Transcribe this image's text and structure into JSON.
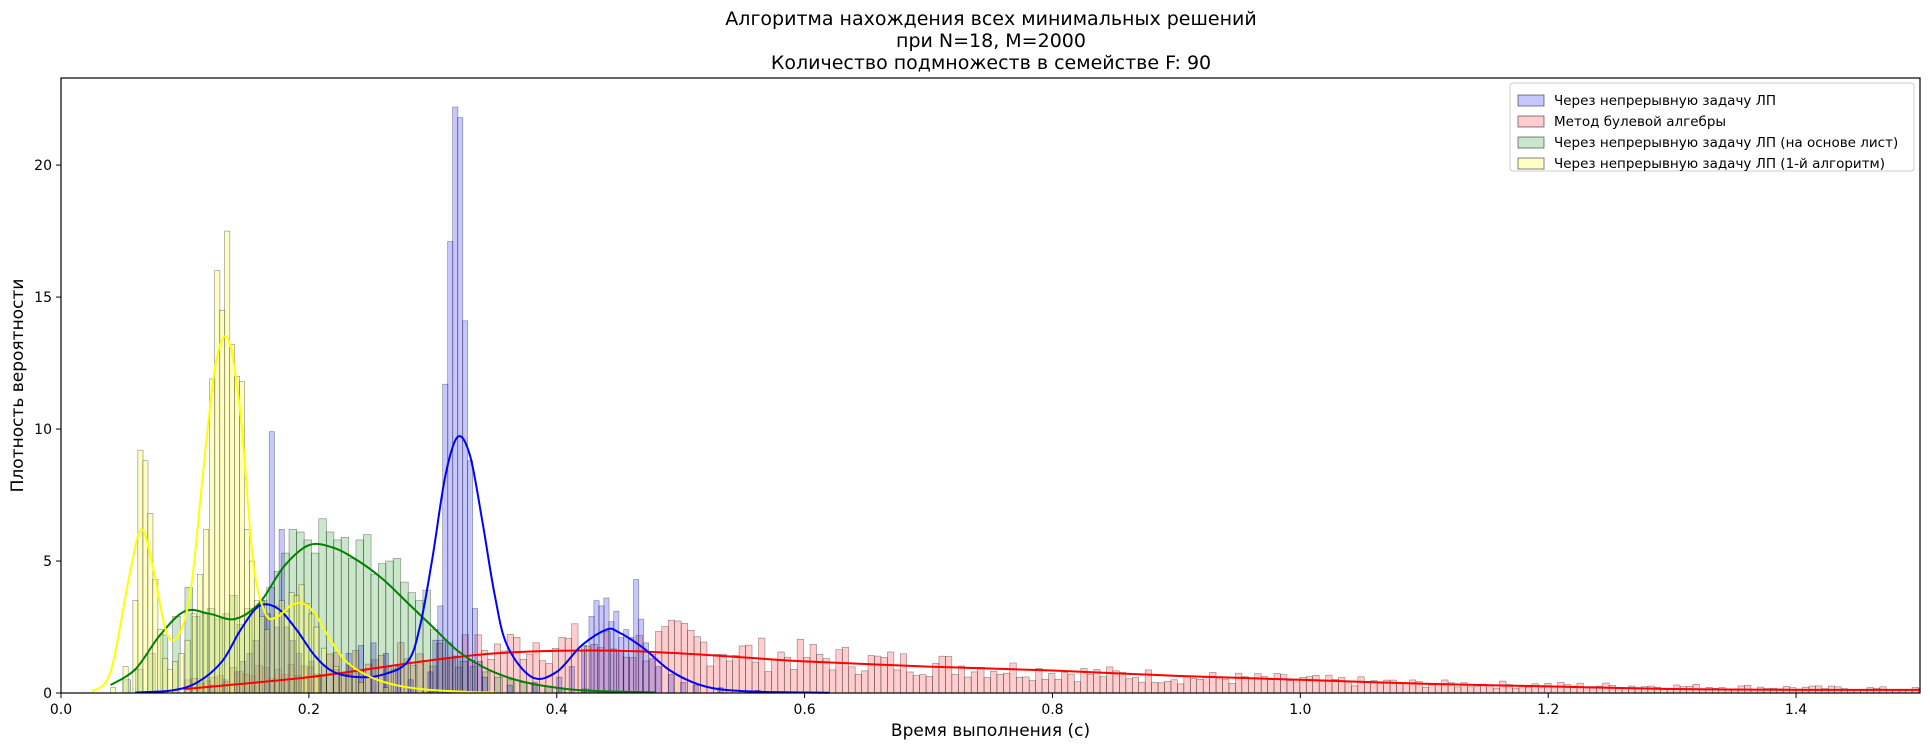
{
  "chart_data": {
    "type": "histogram",
    "title_lines": [
      "Алгоритма нахождения всех минимальных решений",
      "при N=18, M=2000",
      "Количество подмножеств в семействе F: 90"
    ],
    "xlabel": "Время выполнения (с)",
    "ylabel": "Плотность вероятности",
    "xlim": [
      0,
      1.5
    ],
    "ylim": [
      0,
      23.3
    ],
    "xticks": [
      0.0,
      0.2,
      0.4,
      0.6,
      0.8,
      1.0,
      1.2,
      1.4
    ],
    "xtick_labels": [
      "0.0",
      "0.2",
      "0.4",
      "0.6",
      "0.8",
      "1.0",
      "1.2",
      "1.4"
    ],
    "yticks": [
      0,
      5,
      10,
      15,
      20
    ],
    "ytick_labels": [
      "0",
      "5",
      "10",
      "15",
      "20"
    ],
    "grid": false,
    "legend_position": "top-right",
    "series": [
      {
        "name": "Через непрерывную задачу ЛП",
        "color": "#0000ff",
        "fill": "#0000ff",
        "fill_opacity": 0.22,
        "bin_width": 0.0042,
        "bars": [
          [
            0.12,
            0.3
          ],
          [
            0.13,
            0.5
          ],
          [
            0.14,
            0.8
          ],
          [
            0.145,
            1.2
          ],
          [
            0.15,
            1.5
          ],
          [
            0.155,
            2.0
          ],
          [
            0.16,
            3.5
          ],
          [
            0.165,
            3.0
          ],
          [
            0.168,
            9.9
          ],
          [
            0.172,
            2.5
          ],
          [
            0.176,
            6.2
          ],
          [
            0.18,
            2.5
          ],
          [
            0.185,
            2.0
          ],
          [
            0.19,
            1.5
          ],
          [
            0.2,
            1.2
          ],
          [
            0.21,
            1.0
          ],
          [
            0.22,
            0.9
          ],
          [
            0.23,
            1.5
          ],
          [
            0.24,
            1.8
          ],
          [
            0.25,
            1.9
          ],
          [
            0.26,
            1.5
          ],
          [
            0.27,
            1.0
          ],
          [
            0.28,
            0.5
          ],
          [
            0.296,
            0.8
          ],
          [
            0.3,
            2.0
          ],
          [
            0.304,
            3.3
          ],
          [
            0.308,
            11.7
          ],
          [
            0.312,
            17.1
          ],
          [
            0.316,
            22.2
          ],
          [
            0.32,
            21.8
          ],
          [
            0.324,
            14.1
          ],
          [
            0.328,
            8.8
          ],
          [
            0.332,
            3.2
          ],
          [
            0.336,
            1.2
          ],
          [
            0.34,
            0.6
          ],
          [
            0.36,
            0.3
          ],
          [
            0.38,
            0.4
          ],
          [
            0.4,
            0.6
          ],
          [
            0.41,
            1.0
          ],
          [
            0.42,
            1.8
          ],
          [
            0.426,
            2.9
          ],
          [
            0.43,
            3.5
          ],
          [
            0.434,
            3.3
          ],
          [
            0.438,
            3.6
          ],
          [
            0.442,
            2.7
          ],
          [
            0.446,
            3.1
          ],
          [
            0.45,
            2.1
          ],
          [
            0.454,
            2.4
          ],
          [
            0.458,
            2.1
          ],
          [
            0.462,
            4.3
          ],
          [
            0.466,
            2.8
          ],
          [
            0.47,
            1.9
          ],
          [
            0.475,
            1.3
          ],
          [
            0.48,
            1.0
          ],
          [
            0.49,
            0.7
          ],
          [
            0.5,
            0.4
          ],
          [
            0.51,
            0.3
          ],
          [
            0.53,
            0.2
          ],
          [
            0.56,
            0.1
          ]
        ],
        "kde_x": [
          0.06,
          0.09,
          0.11,
          0.13,
          0.145,
          0.16,
          0.175,
          0.19,
          0.205,
          0.22,
          0.24,
          0.26,
          0.28,
          0.29,
          0.3,
          0.31,
          0.32,
          0.33,
          0.34,
          0.35,
          0.36,
          0.38,
          0.4,
          0.42,
          0.44,
          0.45,
          0.47,
          0.49,
          0.51,
          0.53,
          0.56,
          0.6,
          0.62
        ],
        "kde_y": [
          0.02,
          0.1,
          0.4,
          1.2,
          2.4,
          3.3,
          3.2,
          2.4,
          1.4,
          0.8,
          0.6,
          0.7,
          1.2,
          2.6,
          5.2,
          8.2,
          9.7,
          9.0,
          6.5,
          3.7,
          1.8,
          0.6,
          0.8,
          1.8,
          2.4,
          2.3,
          1.7,
          0.9,
          0.4,
          0.15,
          0.05,
          0.02,
          0.01
        ]
      },
      {
        "name": "Метод булевой алгебры",
        "color": "#ff0000",
        "fill": "#ff4d4d",
        "fill_opacity": 0.28,
        "bin_width": 0.0052,
        "bars_generated": {
          "x_start": 0.1,
          "x_end": 1.5,
          "samples": [
            [
              0.1,
              0.5
            ],
            [
              0.15,
              0.8
            ],
            [
              0.2,
              1.0
            ],
            [
              0.25,
              1.2
            ],
            [
              0.3,
              1.5
            ],
            [
              0.35,
              1.7
            ],
            [
              0.38,
              2.0
            ],
            [
              0.4,
              1.8
            ],
            [
              0.42,
              1.9
            ],
            [
              0.45,
              1.7
            ],
            [
              0.5,
              2.0
            ],
            [
              0.55,
              1.5
            ],
            [
              0.6,
              1.4
            ],
            [
              0.65,
              1.2
            ],
            [
              0.7,
              1.1
            ],
            [
              0.8,
              0.8
            ],
            [
              0.9,
              0.6
            ],
            [
              1.0,
              0.5
            ],
            [
              1.1,
              0.35
            ],
            [
              1.2,
              0.3
            ],
            [
              1.3,
              0.25
            ],
            [
              1.4,
              0.2
            ],
            [
              1.5,
              0.15
            ]
          ]
        },
        "kde_x": [
          0.1,
          0.2,
          0.3,
          0.35,
          0.4,
          0.45,
          0.5,
          0.55,
          0.6,
          0.7,
          0.8,
          0.9,
          1.0,
          1.1,
          1.2,
          1.3,
          1.4,
          1.5
        ],
        "kde_y": [
          0.15,
          0.6,
          1.25,
          1.5,
          1.6,
          1.6,
          1.5,
          1.35,
          1.2,
          1.0,
          0.85,
          0.65,
          0.5,
          0.35,
          0.25,
          0.15,
          0.12,
          0.12
        ]
      },
      {
        "name": "Через непрерывную задачу ЛП (на основе лист)",
        "color": "#008000",
        "fill": "#2e9e2e",
        "fill_opacity": 0.25,
        "bin_width": 0.0062,
        "bars": [
          [
            0.05,
            0.5
          ],
          [
            0.06,
            0.9
          ],
          [
            0.07,
            1.5
          ],
          [
            0.08,
            2.2
          ],
          [
            0.09,
            2.9
          ],
          [
            0.1,
            4.0
          ],
          [
            0.106,
            2.9
          ],
          [
            0.112,
            3.0
          ],
          [
            0.118,
            3.2
          ],
          [
            0.124,
            2.8
          ],
          [
            0.13,
            3.0
          ],
          [
            0.136,
            3.7
          ],
          [
            0.142,
            2.6
          ],
          [
            0.148,
            3.2
          ],
          [
            0.154,
            3.2
          ],
          [
            0.16,
            3.5
          ],
          [
            0.166,
            4.0
          ],
          [
            0.172,
            4.6
          ],
          [
            0.178,
            5.3
          ],
          [
            0.184,
            6.2
          ],
          [
            0.19,
            6.1
          ],
          [
            0.196,
            5.8
          ],
          [
            0.202,
            5.3
          ],
          [
            0.208,
            6.6
          ],
          [
            0.214,
            6.1
          ],
          [
            0.22,
            5.8
          ],
          [
            0.226,
            5.9
          ],
          [
            0.232,
            5.1
          ],
          [
            0.238,
            5.8
          ],
          [
            0.244,
            6.0
          ],
          [
            0.25,
            4.5
          ],
          [
            0.256,
            4.9
          ],
          [
            0.262,
            5.0
          ],
          [
            0.268,
            5.1
          ],
          [
            0.274,
            4.2
          ],
          [
            0.28,
            3.8
          ],
          [
            0.286,
            3.5
          ],
          [
            0.292,
            3.9
          ],
          [
            0.298,
            2.4
          ],
          [
            0.304,
            2.0
          ],
          [
            0.31,
            1.9
          ],
          [
            0.316,
            1.4
          ],
          [
            0.322,
            1.2
          ],
          [
            0.33,
            1.0
          ],
          [
            0.34,
            0.8
          ],
          [
            0.35,
            0.6
          ],
          [
            0.36,
            0.5
          ],
          [
            0.37,
            0.4
          ],
          [
            0.38,
            0.3
          ],
          [
            0.39,
            0.25
          ],
          [
            0.4,
            0.2
          ],
          [
            0.42,
            0.15
          ]
        ],
        "kde_x": [
          0.04,
          0.06,
          0.08,
          0.1,
          0.12,
          0.14,
          0.16,
          0.18,
          0.2,
          0.22,
          0.24,
          0.26,
          0.28,
          0.3,
          0.32,
          0.34,
          0.36,
          0.38,
          0.4,
          0.42,
          0.45,
          0.48
        ],
        "kde_y": [
          0.3,
          0.9,
          2.2,
          3.1,
          3.0,
          2.8,
          3.4,
          4.8,
          5.6,
          5.5,
          5.0,
          4.3,
          3.4,
          2.5,
          1.6,
          1.0,
          0.6,
          0.35,
          0.2,
          0.1,
          0.05,
          0.02
        ]
      },
      {
        "name": "Через непрерывную задачу ЛП (1-й алгоритм)",
        "color": "#ffff00",
        "fill": "#ffff66",
        "fill_opacity": 0.38,
        "bin_width": 0.0042,
        "bars": [
          [
            0.04,
            0.2
          ],
          [
            0.05,
            1.0
          ],
          [
            0.058,
            3.5
          ],
          [
            0.062,
            9.2
          ],
          [
            0.066,
            8.8
          ],
          [
            0.07,
            6.8
          ],
          [
            0.074,
            4.3
          ],
          [
            0.078,
            2.4
          ],
          [
            0.082,
            1.3
          ],
          [
            0.086,
            0.9
          ],
          [
            0.09,
            1.2
          ],
          [
            0.095,
            1.5
          ],
          [
            0.1,
            2.0
          ],
          [
            0.105,
            3.0
          ],
          [
            0.11,
            4.5
          ],
          [
            0.115,
            6.2
          ],
          [
            0.12,
            11.9
          ],
          [
            0.124,
            16.0
          ],
          [
            0.128,
            14.5
          ],
          [
            0.132,
            17.5
          ],
          [
            0.136,
            13.2
          ],
          [
            0.14,
            12.0
          ],
          [
            0.144,
            11.8
          ],
          [
            0.148,
            6.2
          ],
          [
            0.152,
            5.0
          ],
          [
            0.156,
            3.5
          ],
          [
            0.16,
            2.9
          ],
          [
            0.164,
            2.4
          ],
          [
            0.168,
            2.8
          ],
          [
            0.172,
            3.3
          ],
          [
            0.176,
            3.5
          ],
          [
            0.18,
            3.1
          ],
          [
            0.184,
            3.8
          ],
          [
            0.188,
            3.7
          ],
          [
            0.192,
            4.1
          ],
          [
            0.196,
            3.4
          ],
          [
            0.2,
            3.0
          ],
          [
            0.204,
            2.5
          ],
          [
            0.21,
            1.7
          ],
          [
            0.22,
            1.0
          ],
          [
            0.23,
            0.7
          ],
          [
            0.24,
            0.4
          ],
          [
            0.26,
            0.2
          ],
          [
            0.3,
            0.05
          ]
        ],
        "kde_x": [
          0.025,
          0.04,
          0.055,
          0.065,
          0.075,
          0.085,
          0.095,
          0.105,
          0.115,
          0.125,
          0.135,
          0.145,
          0.155,
          0.165,
          0.175,
          0.185,
          0.195,
          0.205,
          0.215,
          0.23,
          0.25,
          0.27,
          0.29,
          0.31,
          0.33,
          0.35
        ],
        "kde_y": [
          0.05,
          0.8,
          4.4,
          6.2,
          4.6,
          2.3,
          2.2,
          4.0,
          8.5,
          12.5,
          13.4,
          10.5,
          5.0,
          3.0,
          2.9,
          3.3,
          3.4,
          3.0,
          2.2,
          1.2,
          0.6,
          0.3,
          0.15,
          0.08,
          0.04,
          0.02
        ]
      }
    ]
  }
}
